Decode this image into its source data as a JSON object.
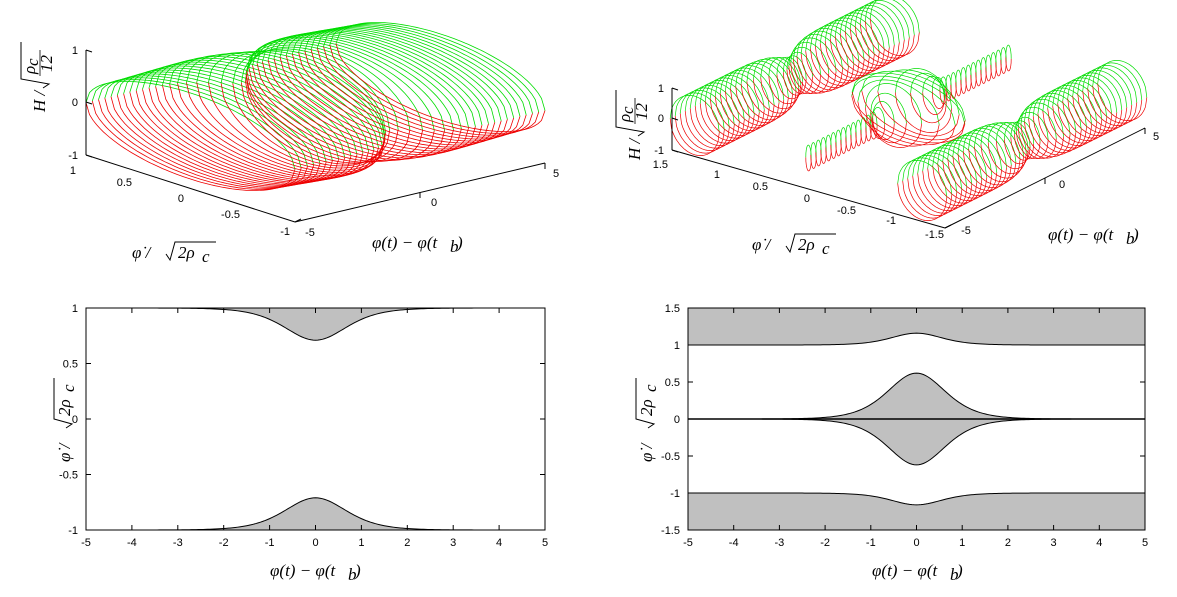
{
  "chart_data": [
    {
      "id": "top-left",
      "type": "surface3d",
      "description_source": "mesh of closed curves, lower half red, upper half green",
      "x_axis": {
        "label": "φ(t) − φ(t_b)",
        "ticks": [
          "-5",
          "0",
          "5"
        ],
        "range": [
          -5,
          5
        ]
      },
      "y_axis": {
        "label": "φ̇/√2ρc",
        "ticks": [
          "1",
          "0.5",
          "0",
          "-0.5",
          "-1"
        ],
        "range": [
          -1,
          1
        ]
      },
      "z_axis": {
        "label": "H/√(ρc/12)",
        "ticks": [
          "1",
          "0",
          "-1"
        ],
        "range": [
          -1,
          1
        ]
      },
      "colors": {
        "upper": "#00dd00",
        "lower": "#ee0000"
      },
      "wall": 0.71
    },
    {
      "id": "top-right",
      "type": "surface3d",
      "x_axis": {
        "label": "φ(t) − φ(t_b)",
        "ticks": [
          "-5",
          "0",
          "5"
        ],
        "range": [
          -5,
          5
        ]
      },
      "y_axis": {
        "label": "φ̇/√2ρc",
        "ticks": [
          "1.5",
          "1",
          "0.5",
          "0",
          "-0.5",
          "-1",
          "-1.5"
        ],
        "range": [
          -1.5,
          1.5
        ]
      },
      "z_axis": {
        "label": "H/√(ρc/12)",
        "ticks": [
          "1",
          "0",
          "-1"
        ],
        "range": [
          -1,
          1
        ]
      },
      "colors": {
        "upper": "#00dd00",
        "lower": "#ee0000"
      }
    },
    {
      "id": "bottom-left",
      "type": "area",
      "xlabel": "φ(t) − φ(t_b)",
      "ylabel": "φ̇/√2ρc",
      "xlim": [
        -5,
        5
      ],
      "ylim": [
        -1,
        1
      ],
      "xticks": [
        "-5",
        "-4",
        "-3",
        "-2",
        "-1",
        "0",
        "1",
        "2",
        "3",
        "4",
        "5"
      ],
      "yticks": [
        "1",
        "0.5",
        "0",
        "-0.5",
        "-1"
      ],
      "fill_color": "#c0c0c0",
      "regions": [
        {
          "name": "upper-forbidden",
          "bound": "y ≥ 1 − 0.29·sech²(x/0.9)",
          "min_at_zero": 0.71
        },
        {
          "name": "lower-forbidden",
          "bound": "y ≤ −1 + 0.29·sech²(x/0.9)",
          "max_at_zero": -0.71
        }
      ]
    },
    {
      "id": "bottom-right",
      "type": "area",
      "xlabel": "φ(t) − φ(t_b)",
      "ylabel": "φ̇/√2ρc",
      "xlim": [
        -5,
        5
      ],
      "ylim": [
        -1.5,
        1.5
      ],
      "xticks": [
        "-5",
        "-4",
        "-3",
        "-2",
        "-1",
        "0",
        "1",
        "2",
        "3",
        "4",
        "5"
      ],
      "yticks": [
        "1.5",
        "1",
        "0.5",
        "0",
        "-0.5",
        "-1",
        "-1.5"
      ],
      "fill_color": "#c0c0c0",
      "regions": [
        {
          "name": "top-band",
          "lower_bound": "y = 1 + 0.16·sech²(x/0.75)",
          "peak_at_zero": 1.16
        },
        {
          "name": "middle-lens",
          "half_width": "0.62·sech²(x/0.85)",
          "peak_at_zero": 0.62
        },
        {
          "name": "bottom-band",
          "upper_bound": "y = −1 − 0.16·sech²(x/0.75)",
          "peak_at_zero": -1.16
        }
      ]
    }
  ]
}
